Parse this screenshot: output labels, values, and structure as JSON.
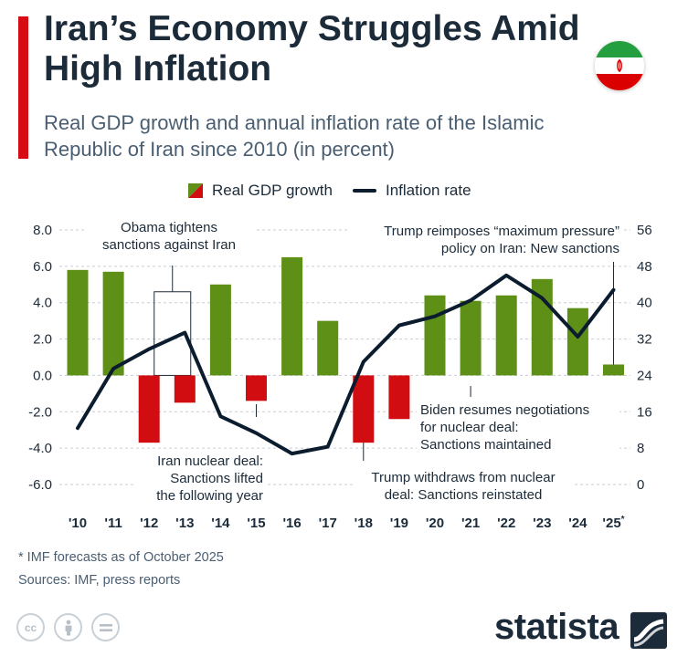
{
  "header": {
    "title": "Iran’s Economy Struggles Amid High Inflation",
    "subtitle": "Real GDP growth and annual inflation rate of the Islamic Republic of Iran since 2010 (in percent)"
  },
  "legend": {
    "gdp_label": "Real GDP growth",
    "inflation_label": "Inflation rate"
  },
  "colors": {
    "positive_bar": "#5e8f17",
    "negative_bar": "#d10d12",
    "line": "#0b1c2e",
    "accent": "#d70b14",
    "grid": "#c5ced6"
  },
  "chart_data": {
    "type": "bar+line",
    "title": "Real GDP growth and annual inflation rate of the Islamic Republic of Iran since 2010 (in percent)",
    "categories": [
      "'10",
      "'11",
      "'12",
      "'13",
      "'14",
      "'15",
      "'16",
      "'17",
      "'18",
      "'19",
      "'20",
      "'21",
      "'22",
      "'23",
      "'24",
      "'25"
    ],
    "last_category_mark": "*",
    "series": [
      {
        "name": "Real GDP growth",
        "axis": "left",
        "type": "bar",
        "values": [
          5.8,
          5.7,
          -3.7,
          -1.5,
          5.0,
          -1.4,
          6.5,
          3.0,
          -3.7,
          -2.4,
          4.4,
          4.1,
          4.4,
          5.3,
          3.7,
          0.6
        ]
      },
      {
        "name": "Inflation rate",
        "axis": "right",
        "type": "line",
        "values": [
          12.4,
          25.5,
          29.8,
          33.4,
          15.0,
          11.3,
          6.8,
          8.3,
          27.0,
          35.0,
          37.0,
          40.5,
          46.0,
          41.0,
          32.5,
          42.8
        ]
      }
    ],
    "left_axis": {
      "ylim": [
        -6.0,
        8.0
      ],
      "ticks": [
        "8.0",
        "6.0",
        "4.0",
        "2.0",
        "0.0",
        "-2.0",
        "-4.0",
        "-6.0"
      ]
    },
    "right_axis": {
      "ylim": [
        0,
        56
      ],
      "ticks": [
        "56",
        "48",
        "40",
        "32",
        "24",
        "16",
        "8",
        "0"
      ]
    },
    "grid": true,
    "annotations": {
      "obama": [
        "Obama tightens",
        "sanctions against Iran"
      ],
      "deal": [
        "Iran nuclear deal:",
        "Sanctions lifted",
        "the following year"
      ],
      "trump_withdraw": [
        "Trump withdraws from nuclear",
        "deal: Sanctions reinstated"
      ],
      "biden": [
        "Biden resumes negotiations",
        "for nuclear deal:",
        "Sanctions maintained"
      ],
      "trump_max": [
        "Trump reimposes “maximum pressure”",
        "policy on Iran: New sanctions"
      ]
    }
  },
  "footer": {
    "footnote": "* IMF forecasts as of October 2025",
    "sources": "Sources: IMF, press reports",
    "brand": "statista",
    "license_icons": [
      "cc-icon",
      "attribution-icon",
      "no-derivatives-icon"
    ]
  }
}
